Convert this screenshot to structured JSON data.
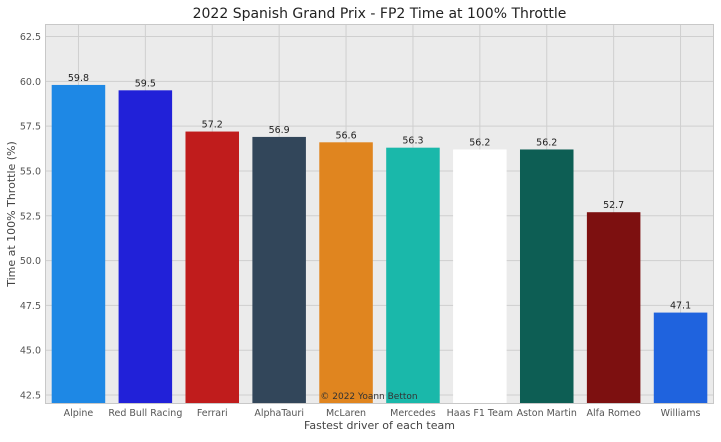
{
  "chart_data": {
    "type": "bar",
    "title": "2022 Spanish Grand Prix - FP2 Time at 100% Throttle",
    "xlabel": "Fastest driver of each team",
    "ylabel": "Time at 100% Throttle (%)",
    "ylim": [
      42,
      63.2
    ],
    "yticks": [
      "42.5",
      "45.0",
      "47.5",
      "50.0",
      "52.5",
      "55.0",
      "57.5",
      "60.0",
      "62.5"
    ],
    "grid": true,
    "categories": [
      "Alpine",
      "Red Bull Racing",
      "Ferrari",
      "AlphaTauri",
      "McLaren",
      "Mercedes",
      "Haas F1 Team",
      "Aston Martin",
      "Alfa Romeo",
      "Williams"
    ],
    "values": [
      59.8,
      59.5,
      57.2,
      56.9,
      56.6,
      56.3,
      56.2,
      56.2,
      52.7,
      47.1
    ],
    "value_labels": [
      "59.8",
      "59.5",
      "57.2",
      "56.9",
      "56.6",
      "56.3",
      "56.2",
      "56.2",
      "52.7",
      "47.1"
    ],
    "colors": [
      "#1e88e5",
      "#2121d8",
      "#c01c1c",
      "#32465a",
      "#e0851f",
      "#1ab8aa",
      "#ffffff",
      "#0d5e54",
      "#7d1010",
      "#1f63de"
    ],
    "annotation": "© 2022 Yoann Betton",
    "background": "#ebebeb"
  }
}
